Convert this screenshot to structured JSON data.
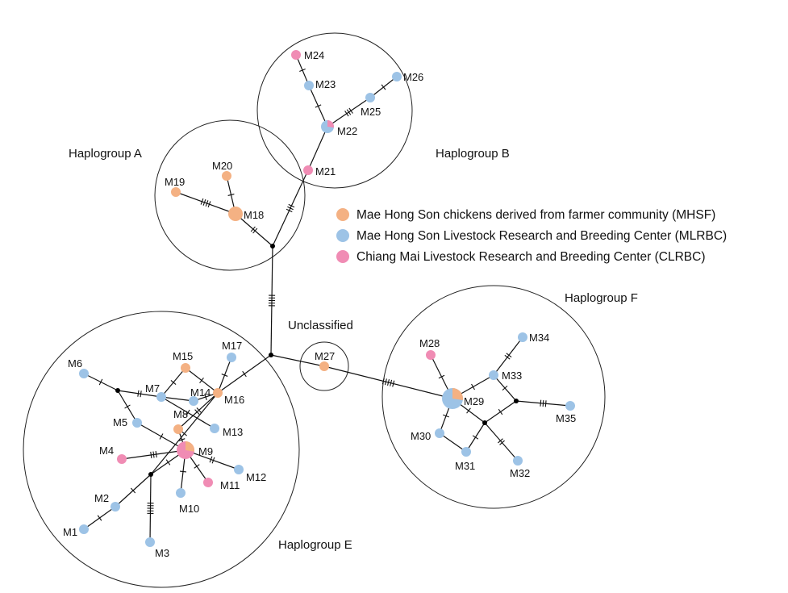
{
  "colors": {
    "MHSF": "#f4b183",
    "MLRBC": "#9dc3e6",
    "CLRBC": "#f08cb4",
    "line": "#111111"
  },
  "legend": [
    {
      "key": "MHSF",
      "label": "Mae Hong Son chickens derived from farmer community (MHSF)"
    },
    {
      "key": "MLRBC",
      "label": "Mae Hong Son Livestock Research and Breeding Center (MLRBC)"
    },
    {
      "key": "CLRBC",
      "label": "Chiang Mai Livestock Research and Breeding Center (CLRBC)"
    }
  ],
  "groups": [
    {
      "id": "A",
      "label": "Haplogroup A"
    },
    {
      "id": "B",
      "label": "Haplogroup B"
    },
    {
      "id": "U",
      "label": "Unclassified"
    },
    {
      "id": "F",
      "label": "Haplogroup F"
    },
    {
      "id": "E",
      "label": "Haplogroup E"
    }
  ],
  "haplotypes": [
    {
      "id": "M1",
      "group": "E",
      "composition": [
        "MLRBC"
      ]
    },
    {
      "id": "M2",
      "group": "E",
      "composition": [
        "MLRBC"
      ]
    },
    {
      "id": "M3",
      "group": "E",
      "composition": [
        "MLRBC"
      ]
    },
    {
      "id": "M4",
      "group": "E",
      "composition": [
        "CLRBC"
      ]
    },
    {
      "id": "M5",
      "group": "E",
      "composition": [
        "MLRBC"
      ]
    },
    {
      "id": "M6",
      "group": "E",
      "composition": [
        "MLRBC"
      ]
    },
    {
      "id": "M7",
      "group": "E",
      "composition": [
        "MLRBC"
      ]
    },
    {
      "id": "M8",
      "group": "E",
      "composition": [
        "MHSF"
      ]
    },
    {
      "id": "M9",
      "group": "E",
      "composition": [
        "CLRBC",
        "MHSF"
      ]
    },
    {
      "id": "M10",
      "group": "E",
      "composition": [
        "MLRBC"
      ]
    },
    {
      "id": "M11",
      "group": "E",
      "composition": [
        "CLRBC"
      ]
    },
    {
      "id": "M12",
      "group": "E",
      "composition": [
        "MLRBC"
      ]
    },
    {
      "id": "M13",
      "group": "E",
      "composition": [
        "MLRBC"
      ]
    },
    {
      "id": "M14",
      "group": "E",
      "composition": [
        "MLRBC"
      ]
    },
    {
      "id": "M15",
      "group": "E",
      "composition": [
        "MHSF"
      ]
    },
    {
      "id": "M16",
      "group": "E",
      "composition": [
        "MHSF"
      ]
    },
    {
      "id": "M17",
      "group": "E",
      "composition": [
        "MLRBC"
      ]
    },
    {
      "id": "M18",
      "group": "A",
      "composition": [
        "MHSF"
      ]
    },
    {
      "id": "M19",
      "group": "A",
      "composition": [
        "MHSF"
      ]
    },
    {
      "id": "M20",
      "group": "A",
      "composition": [
        "MHSF"
      ]
    },
    {
      "id": "M21",
      "group": "B",
      "composition": [
        "CLRBC"
      ]
    },
    {
      "id": "M22",
      "group": "B",
      "composition": [
        "MLRBC",
        "CLRBC"
      ]
    },
    {
      "id": "M23",
      "group": "B",
      "composition": [
        "MLRBC"
      ]
    },
    {
      "id": "M24",
      "group": "B",
      "composition": [
        "CLRBC"
      ]
    },
    {
      "id": "M25",
      "group": "B",
      "composition": [
        "MLRBC"
      ]
    },
    {
      "id": "M26",
      "group": "B",
      "composition": [
        "MLRBC"
      ]
    },
    {
      "id": "M27",
      "group": "U",
      "composition": [
        "MHSF"
      ]
    },
    {
      "id": "M28",
      "group": "F",
      "composition": [
        "CLRBC"
      ]
    },
    {
      "id": "M29",
      "group": "F",
      "composition": [
        "MLRBC",
        "MHSF"
      ]
    },
    {
      "id": "M30",
      "group": "F",
      "composition": [
        "MLRBC"
      ]
    },
    {
      "id": "M31",
      "group": "F",
      "composition": [
        "MLRBC"
      ]
    },
    {
      "id": "M32",
      "group": "F",
      "composition": [
        "MLRBC"
      ]
    },
    {
      "id": "M33",
      "group": "F",
      "composition": [
        "MLRBC"
      ]
    },
    {
      "id": "M34",
      "group": "F",
      "composition": [
        "MLRBC"
      ]
    },
    {
      "id": "M35",
      "group": "F",
      "composition": [
        "MLRBC"
      ]
    }
  ],
  "edges": [
    {
      "from": "J1",
      "to": "M21",
      "mutations": 3
    },
    {
      "from": "J1",
      "to": "M18",
      "mutations": 2
    },
    {
      "from": "J1",
      "to": "J2",
      "mutations": 5
    },
    {
      "from": "M18",
      "to": "M19",
      "mutations": 4
    },
    {
      "from": "M18",
      "to": "M20",
      "mutations": 1
    },
    {
      "from": "M21",
      "to": "M22",
      "mutations": 0
    },
    {
      "from": "M22",
      "to": "M23",
      "mutations": 1
    },
    {
      "from": "M23",
      "to": "M24",
      "mutations": 1
    },
    {
      "from": "M22",
      "to": "M25",
      "mutations": 3
    },
    {
      "from": "M25",
      "to": "M26",
      "mutations": 1
    },
    {
      "from": "J2",
      "to": "M27",
      "mutations": 0
    },
    {
      "from": "M27",
      "to": "M29",
      "mutations": 5
    },
    {
      "from": "M29",
      "to": "M28",
      "mutations": 1
    },
    {
      "from": "M29",
      "to": "M33",
      "mutations": 1
    },
    {
      "from": "M33",
      "to": "M34",
      "mutations": 2
    },
    {
      "from": "M33",
      "to": "J5",
      "mutations": 1
    },
    {
      "from": "J5",
      "to": "M35",
      "mutations": 3
    },
    {
      "from": "J5",
      "to": "J6",
      "mutations": 1
    },
    {
      "from": "M29",
      "to": "J6",
      "mutations": 1
    },
    {
      "from": "J6",
      "to": "M32",
      "mutations": 2
    },
    {
      "from": "J6",
      "to": "M31",
      "mutations": 1
    },
    {
      "from": "M29",
      "to": "M30",
      "mutations": 1
    },
    {
      "from": "M30",
      "to": "M31",
      "mutations": 0
    },
    {
      "from": "J2",
      "to": "M16",
      "mutations": 1
    },
    {
      "from": "M16",
      "to": "M17",
      "mutations": 1
    },
    {
      "from": "M16",
      "to": "M15",
      "mutations": 1
    },
    {
      "from": "M16",
      "to": "M8",
      "mutations": 2
    },
    {
      "from": "M16",
      "to": "M14",
      "mutations": 1
    },
    {
      "from": "M16",
      "to": "J4",
      "mutations": 1
    },
    {
      "from": "M15",
      "to": "M7",
      "mutations": 1
    },
    {
      "from": "M7",
      "to": "M14",
      "mutations": 0
    },
    {
      "from": "M7",
      "to": "J3",
      "mutations": 2
    },
    {
      "from": "M7",
      "to": "M13",
      "mutations": 1
    },
    {
      "from": "J3",
      "to": "M6",
      "mutations": 1
    },
    {
      "from": "J3",
      "to": "M5",
      "mutations": 1
    },
    {
      "from": "M5",
      "to": "M9",
      "mutations": 1
    },
    {
      "from": "M8",
      "to": "M9",
      "mutations": 1
    },
    {
      "from": "M9",
      "to": "M4",
      "mutations": 3
    },
    {
      "from": "M9",
      "to": "M10",
      "mutations": 1
    },
    {
      "from": "M9",
      "to": "M11",
      "mutations": 1
    },
    {
      "from": "M9",
      "to": "M12",
      "mutations": 2
    },
    {
      "from": "M9",
      "to": "J4",
      "mutations": 1
    },
    {
      "from": "J4",
      "to": "M2",
      "mutations": 1
    },
    {
      "from": "M2",
      "to": "M1",
      "mutations": 1
    },
    {
      "from": "J4",
      "to": "M3",
      "mutations": 5
    }
  ]
}
